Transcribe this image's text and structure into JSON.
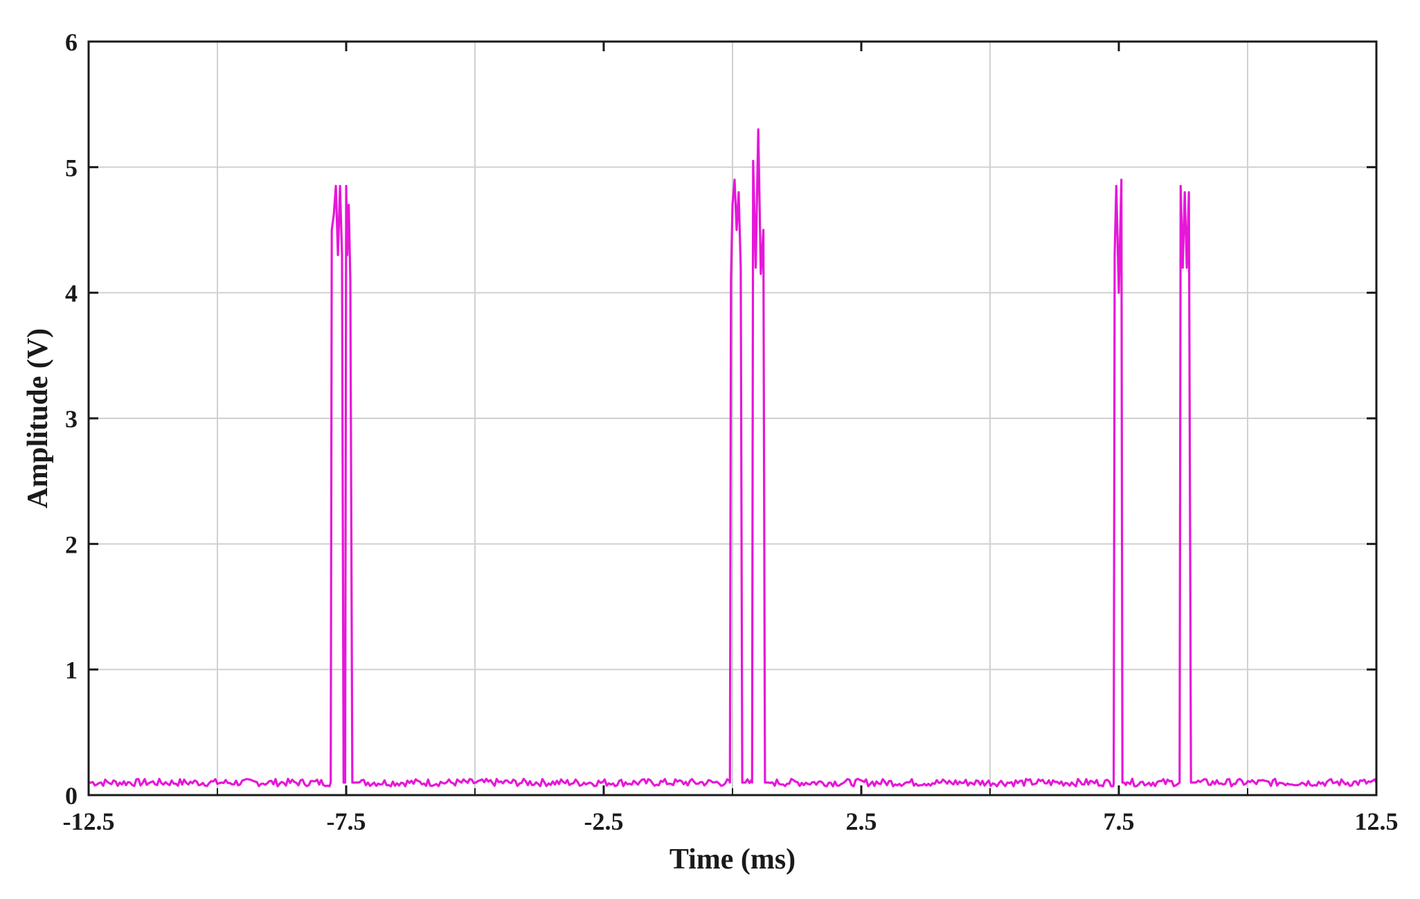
{
  "chart_data": {
    "type": "line",
    "title": "",
    "xlabel": "Time (ms)",
    "ylabel": "Amplitude (V)",
    "xlim": [
      -12.5,
      12.5
    ],
    "ylim": [
      0,
      6
    ],
    "grid": true,
    "legend": "none",
    "x_ticks": [
      "-12.5",
      "-7.5",
      "-2.5",
      "2.5",
      "7.5",
      "12.5"
    ],
    "y_ticks": [
      "0",
      "1",
      "2",
      "3",
      "4",
      "5",
      "6"
    ],
    "x_minor_gridlines": [
      -10,
      -5,
      0,
      5,
      10
    ],
    "series": [
      {
        "color": "#e617d9",
        "baseline": 0.1,
        "x": [
          -12.5,
          -7.8,
          -7.78,
          -7.74,
          -7.7,
          -7.66,
          -7.62,
          -7.58,
          -7.55,
          -7.52,
          -7.5,
          -7.48,
          -7.45,
          -7.42,
          -7.38,
          -7.34,
          -7.3,
          -7.28,
          -0.05,
          -0.03,
          0.0,
          0.04,
          0.08,
          0.12,
          0.16,
          0.19,
          0.22,
          0.25,
          0.38,
          0.4,
          0.45,
          0.5,
          0.55,
          0.6,
          0.63,
          0.66,
          0.7,
          0.75,
          0.78,
          7.4,
          7.42,
          7.45,
          7.5,
          7.55,
          7.57,
          7.6,
          7.65,
          7.68,
          8.68,
          8.7,
          8.74,
          8.78,
          8.82,
          8.86,
          8.9,
          8.94,
          8.96,
          12.5
        ],
        "y": [
          0.1,
          0.1,
          4.5,
          4.62,
          4.85,
          4.3,
          4.85,
          4.3,
          0.1,
          0.1,
          4.85,
          4.3,
          4.7,
          4.1,
          0.1,
          0.1,
          0.1,
          0.1,
          0.1,
          4.1,
          4.7,
          4.9,
          4.5,
          4.8,
          4.2,
          0.1,
          0.1,
          0.1,
          0.1,
          5.05,
          4.2,
          5.3,
          4.15,
          4.5,
          0.1,
          0.1,
          0.1,
          0.1,
          0.1,
          0.1,
          4.3,
          4.85,
          4.0,
          4.9,
          0.1,
          0.1,
          0.1,
          0.1,
          0.1,
          4.85,
          4.2,
          4.8,
          4.2,
          4.8,
          0.1,
          0.1,
          0.1,
          0.1
        ]
      }
    ]
  }
}
